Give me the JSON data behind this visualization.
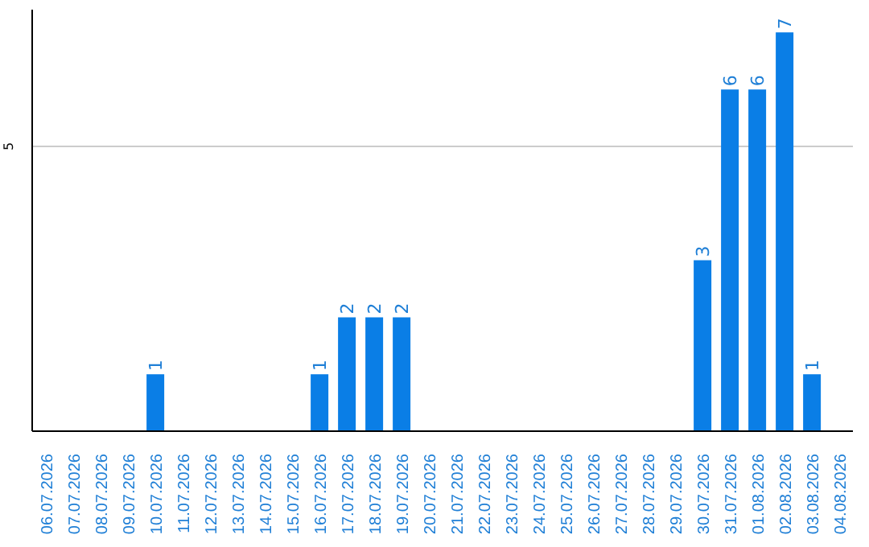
{
  "chart_data": {
    "type": "bar",
    "categories": [
      "06.07.2026",
      "07.07.2026",
      "08.07.2026",
      "09.07.2026",
      "10.07.2026",
      "11.07.2026",
      "12.07.2026",
      "13.07.2026",
      "14.07.2026",
      "15.07.2026",
      "16.07.2026",
      "17.07.2026",
      "18.07.2026",
      "19.07.2026",
      "20.07.2026",
      "21.07.2026",
      "22.07.2026",
      "23.07.2026",
      "24.07.2026",
      "25.07.2026",
      "26.07.2026",
      "27.07.2026",
      "28.07.2026",
      "29.07.2026",
      "30.07.2026",
      "31.07.2026",
      "01.08.2026",
      "02.08.2026",
      "03.08.2026",
      "04.08.2026"
    ],
    "values": [
      0,
      0,
      0,
      0,
      1,
      0,
      0,
      0,
      0,
      0,
      1,
      2,
      2,
      2,
      0,
      0,
      0,
      0,
      0,
      0,
      0,
      0,
      0,
      0,
      3,
      6,
      6,
      7,
      1,
      0
    ],
    "value_labels": [
      null,
      null,
      null,
      null,
      "1",
      null,
      null,
      null,
      null,
      null,
      "1",
      "2",
      "2",
      "2",
      null,
      null,
      null,
      null,
      null,
      null,
      null,
      null,
      null,
      null,
      "3",
      "6",
      "6",
      "7",
      "1",
      null
    ],
    "color": "#0a7ee6",
    "ylim": [
      0,
      7.4
    ],
    "yticks": [
      5
    ],
    "grid": "y"
  }
}
